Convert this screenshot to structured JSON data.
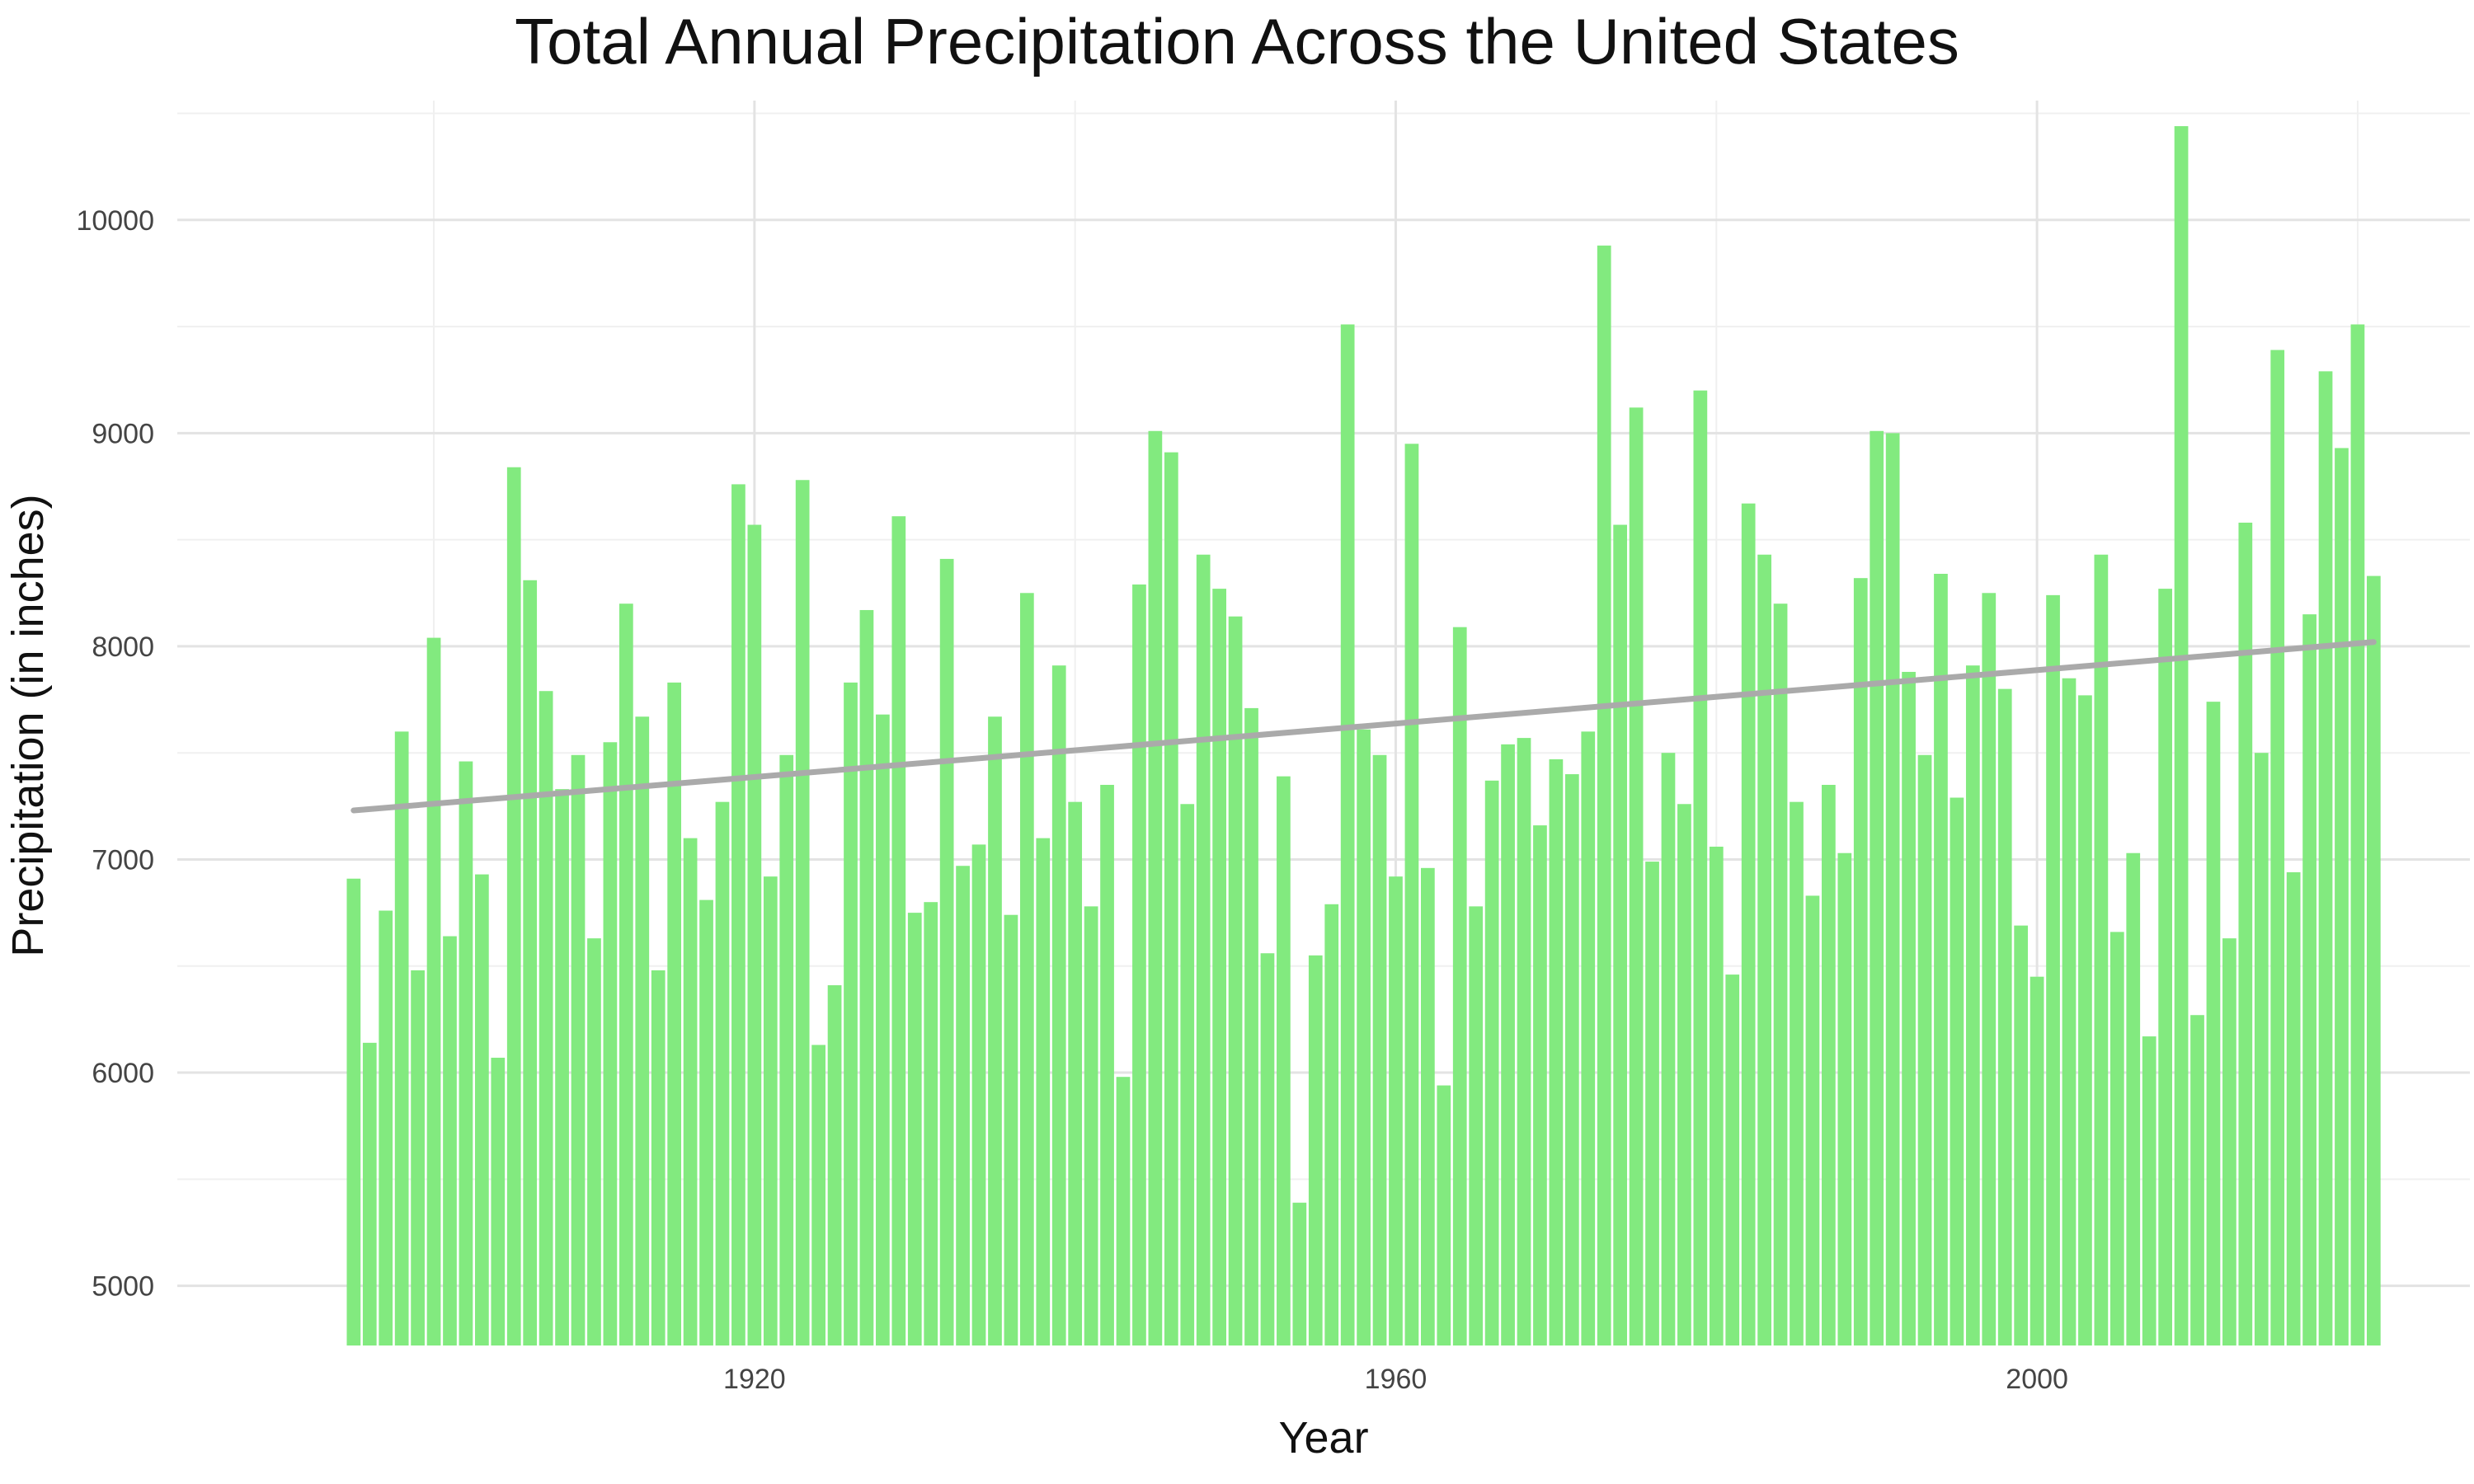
{
  "chart_data": {
    "type": "bar",
    "title": "Total Annual Precipitation Across the United States",
    "xlabel": "Year",
    "ylabel": "Precipitation (in inches)",
    "x": [
      1895,
      1896,
      1897,
      1898,
      1899,
      1900,
      1901,
      1902,
      1903,
      1904,
      1905,
      1906,
      1907,
      1908,
      1909,
      1910,
      1911,
      1912,
      1913,
      1914,
      1915,
      1916,
      1917,
      1918,
      1919,
      1920,
      1921,
      1922,
      1923,
      1924,
      1925,
      1926,
      1927,
      1928,
      1929,
      1930,
      1931,
      1932,
      1933,
      1934,
      1935,
      1936,
      1937,
      1938,
      1939,
      1940,
      1941,
      1942,
      1943,
      1944,
      1945,
      1946,
      1947,
      1948,
      1949,
      1950,
      1951,
      1952,
      1953,
      1954,
      1955,
      1956,
      1957,
      1958,
      1959,
      1960,
      1961,
      1962,
      1963,
      1964,
      1965,
      1966,
      1967,
      1968,
      1969,
      1970,
      1971,
      1972,
      1973,
      1974,
      1975,
      1976,
      1977,
      1978,
      1979,
      1980,
      1981,
      1982,
      1983,
      1984,
      1985,
      1986,
      1987,
      1988,
      1989,
      1990,
      1991,
      1992,
      1993,
      1994,
      1995,
      1996,
      1997,
      1998,
      1999,
      2000,
      2001,
      2002,
      2003,
      2004,
      2005,
      2006,
      2007,
      2008,
      2009,
      2010,
      2011,
      2012,
      2013,
      2014,
      2015,
      2016,
      2017,
      2018,
      2019,
      2020,
      2021
    ],
    "values": [
      6910,
      6140,
      6760,
      7600,
      6480,
      8040,
      6640,
      7460,
      6930,
      6070,
      8840,
      8310,
      7790,
      7330,
      7490,
      6630,
      7550,
      8200,
      7670,
      6480,
      7830,
      7100,
      6810,
      7270,
      8760,
      8570,
      6920,
      7490,
      8780,
      6130,
      6410,
      7830,
      8170,
      7680,
      8610,
      6750,
      6800,
      8410,
      6970,
      7070,
      7670,
      6740,
      8250,
      7100,
      7910,
      7270,
      6780,
      7350,
      5980,
      8290,
      9010,
      8910,
      7260,
      8430,
      8270,
      8140,
      7710,
      6560,
      7390,
      5390,
      6550,
      6790,
      9510,
      7610,
      7490,
      6920,
      8950,
      6960,
      5940,
      8090,
      6780,
      7370,
      7540,
      7570,
      7160,
      7470,
      7400,
      7600,
      9880,
      8570,
      9120,
      6990,
      7500,
      7260,
      9200,
      7060,
      6460,
      8670,
      8430,
      8200,
      7270,
      6830,
      7350,
      7030,
      8320,
      9010,
      9000,
      7880,
      7490,
      8340,
      7290,
      7910,
      8250,
      7800,
      6690,
      6450,
      8240,
      7850,
      7770,
      8430,
      6660,
      7030,
      6170,
      8270,
      10440,
      6270,
      7740,
      6630,
      8580,
      7500,
      9390,
      6940,
      8150,
      9290,
      8930,
      9510,
      8330
    ],
    "xlim": [
      1884,
      2027
    ],
    "ylim": [
      4720,
      10560
    ],
    "x_ticks": [
      "1920",
      "1960",
      "2000"
    ],
    "y_ticks": [
      "5000",
      "6000",
      "7000",
      "8000",
      "9000",
      "10000"
    ],
    "trend_line": {
      "x": [
        1895,
        2021
      ],
      "y": [
        7230,
        8020
      ]
    },
    "grid": true,
    "legend": "none",
    "colors": {
      "bar": "#82ea7f",
      "trend": "#aaaaaa",
      "grid_major": "#e3e3e3",
      "grid_minor": "#f0f0f0"
    }
  }
}
